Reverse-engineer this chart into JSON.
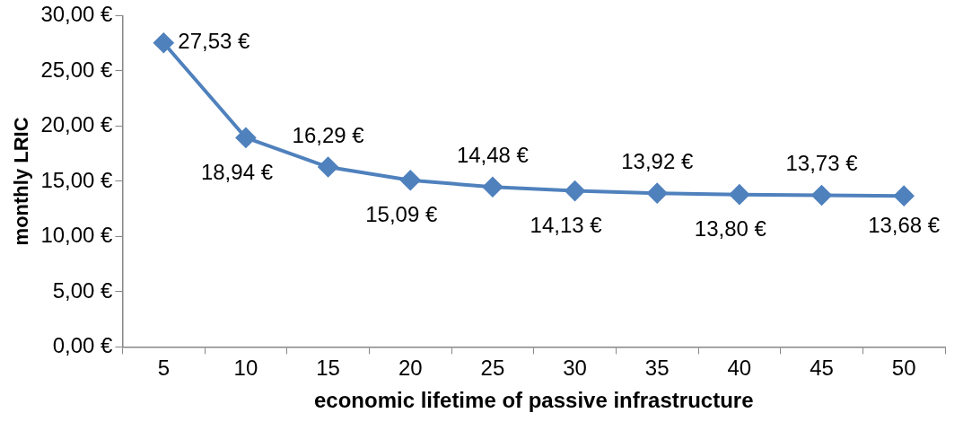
{
  "chart_data": {
    "type": "line",
    "xlabel": "economic lifetime of passive infrastructure",
    "ylabel": "monthly LRIC",
    "categories": [
      "5",
      "10",
      "15",
      "20",
      "25",
      "30",
      "35",
      "40",
      "45",
      "50"
    ],
    "series": [
      {
        "color": "#4f81bd",
        "values": [
          27.53,
          18.94,
          16.29,
          15.09,
          14.48,
          14.13,
          13.92,
          13.8,
          13.73,
          13.68
        ],
        "value_labels": [
          "27,53 €",
          "18,94 €",
          "16,29 €",
          "15,09 €",
          "14,48 €",
          "14,13 €",
          "13,92 €",
          "13,80 €",
          "13,73 €",
          "13,68 €"
        ]
      }
    ],
    "ylim": [
      0,
      30
    ],
    "yticks": [
      {
        "value": 0,
        "label": "0,00 €"
      },
      {
        "value": 5,
        "label": "5,00 €"
      },
      {
        "value": 10,
        "label": "10,00 €"
      },
      {
        "value": 15,
        "label": "15,00 €"
      },
      {
        "value": 20,
        "label": "20,00 €"
      },
      {
        "value": 25,
        "label": "25,00 €"
      },
      {
        "value": 30,
        "label": "30,00 €"
      }
    ],
    "grid": false,
    "legend": false,
    "marker": "diamond",
    "line_style": "solid"
  }
}
